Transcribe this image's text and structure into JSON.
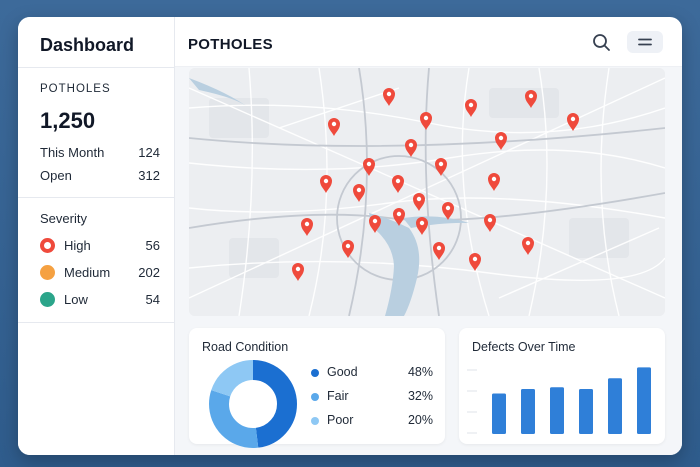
{
  "sidebar": {
    "title": "Dashboard",
    "section_label": "POTHOLES",
    "total": "1,250",
    "stats": [
      {
        "label": "This Month",
        "value": "124"
      },
      {
        "label": "Open",
        "value": "312"
      }
    ],
    "severity_label": "Severity",
    "severity": [
      {
        "label": "High",
        "value": "56",
        "color": "#ef4a3c"
      },
      {
        "label": "Medium",
        "value": "202",
        "color": "#f5a142"
      },
      {
        "label": "Low",
        "value": "54",
        "color": "#2ba58a"
      }
    ]
  },
  "header": {
    "title": "POTHOLES",
    "search_icon": "search-icon",
    "menu_icon": "menu-icon"
  },
  "map": {
    "pin_color": "#ef4a3c",
    "water_color": "#b9cfe0",
    "pin_count": 31
  },
  "road_condition": {
    "title": "Road Condition",
    "items": [
      {
        "label": "Good",
        "pct": "48%",
        "value": 48,
        "color": "#1b6fd1"
      },
      {
        "label": "Fair",
        "pct": "32%",
        "value": 32,
        "color": "#5aa8ea"
      },
      {
        "label": "Poor",
        "pct": "20%",
        "value": 20,
        "color": "#8ec8f4"
      }
    ]
  },
  "defects": {
    "title": "Defects Over Time",
    "bar_color": "#2f7fd8",
    "values": [
      45,
      50,
      52,
      50,
      62,
      74
    ]
  }
}
